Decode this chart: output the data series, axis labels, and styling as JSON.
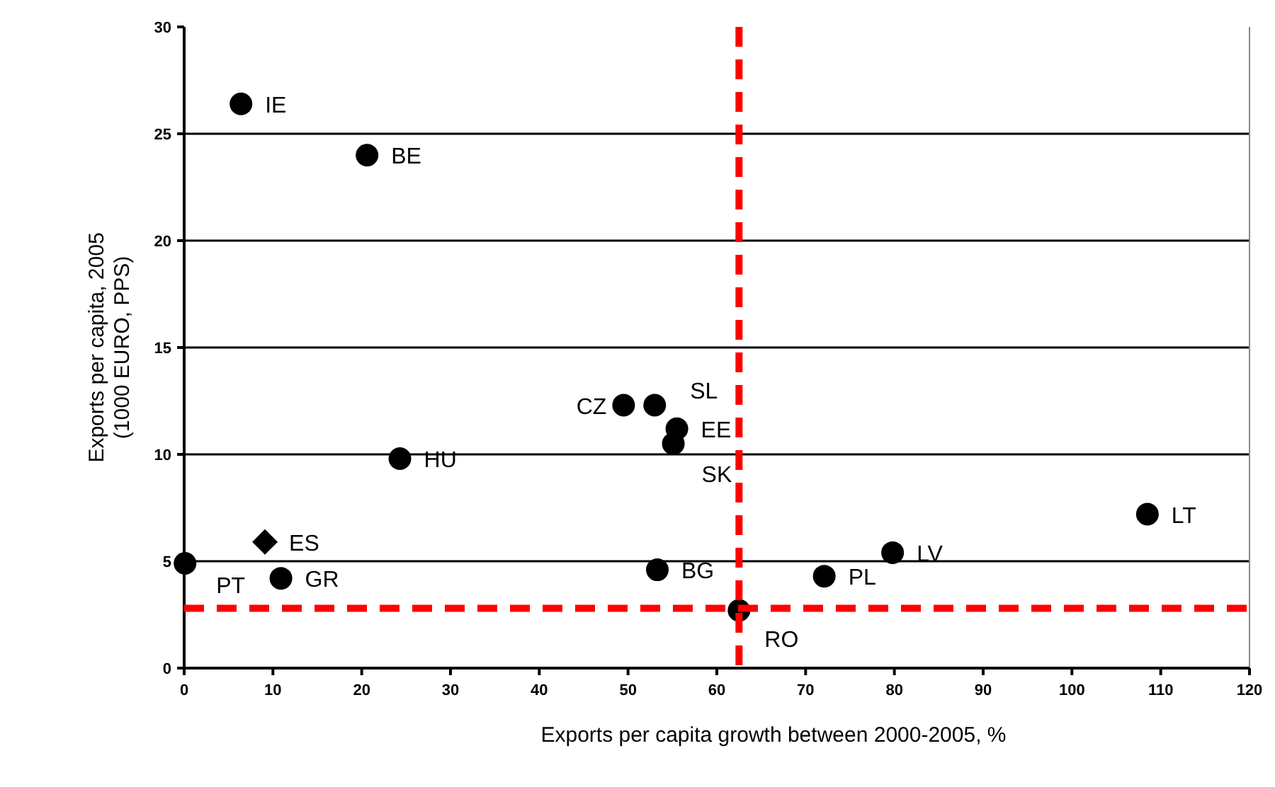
{
  "chart_data": {
    "type": "scatter",
    "xlabel": "Exports per capita growth between 2000-2005, %",
    "ylabel": "Exports per capita, 2005\n(1000 EURO, PPS)",
    "xlim": [
      0,
      120
    ],
    "xticks": [
      0,
      10,
      20,
      30,
      40,
      50,
      60,
      70,
      80,
      90,
      100,
      110,
      120
    ],
    "ylim": [
      0,
      30
    ],
    "yticks": [
      0,
      5,
      10,
      15,
      20,
      25,
      30
    ],
    "grid": "y",
    "series": [
      {
        "color": "#000000",
        "marker": "circle",
        "x": [
          6.4,
          20.6,
          49.5,
          53.0,
          55.5,
          55.1,
          24.3,
          108.5,
          79.8,
          53.3,
          72.1,
          62.5,
          0.1,
          10.9
        ],
        "values": [
          26.4,
          24.0,
          12.3,
          12.3,
          11.2,
          10.5,
          9.8,
          7.2,
          5.4,
          4.6,
          4.3,
          2.7,
          4.9,
          4.2
        ]
      },
      {
        "color": "#000000",
        "marker": "diamond",
        "x": [
          9.1
        ],
        "values": [
          5.9
        ]
      }
    ],
    "ref_lines": [
      {
        "axis": "x",
        "value": 62.5,
        "color": "#ff0000",
        "line_style": "dashed"
      },
      {
        "axis": "y",
        "value": 2.8,
        "color": "#ff0000",
        "line_style": "dashed"
      }
    ],
    "annotations": [
      {
        "text": "IE",
        "x": 6.4,
        "y": 26.4
      },
      {
        "text": "BE",
        "x": 20.6,
        "y": 24.0
      },
      {
        "text": "CZ",
        "x": 49.5,
        "y": 12.3
      },
      {
        "text": "SL",
        "x": 53.0,
        "y": 12.3
      },
      {
        "text": "EE",
        "x": 55.5,
        "y": 11.2
      },
      {
        "text": "SK",
        "x": 55.1,
        "y": 10.5
      },
      {
        "text": "HU",
        "x": 24.3,
        "y": 9.8
      },
      {
        "text": "LT",
        "x": 108.5,
        "y": 7.2
      },
      {
        "text": "LV",
        "x": 79.8,
        "y": 5.4
      },
      {
        "text": "BG",
        "x": 53.3,
        "y": 4.6
      },
      {
        "text": "PL",
        "x": 72.1,
        "y": 4.3
      },
      {
        "text": "RO",
        "x": 62.5,
        "y": 2.7
      },
      {
        "text": "PT",
        "x": 0.1,
        "y": 4.9
      },
      {
        "text": "GR",
        "x": 10.9,
        "y": 4.2
      },
      {
        "text": "ES",
        "x": 9.1,
        "y": 5.9
      }
    ]
  }
}
